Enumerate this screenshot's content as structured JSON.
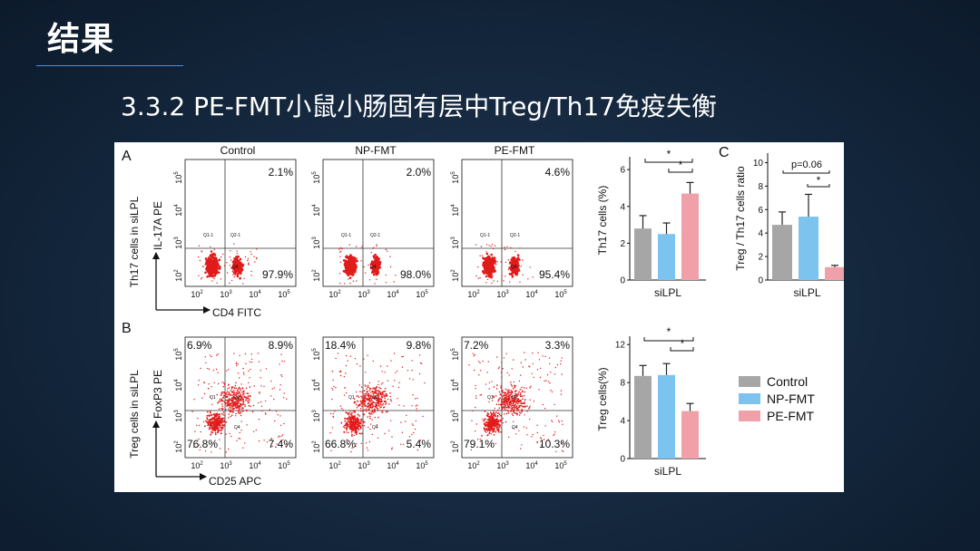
{
  "slide": {
    "title": "结果",
    "subtitle": "3.3.2 PE-FMT小鼠小肠固有层中Treg/Th17免疫失衡"
  },
  "figure": {
    "panel_labels": [
      "A",
      "B",
      "C"
    ],
    "column_titles": [
      "Control",
      "NP-FMT",
      "PE-FMT"
    ],
    "row_a": {
      "y_outer": "Th17 cells in siLPL",
      "y_inner": "IL-17A PE",
      "x_axis": "CD4 FITC",
      "plots": [
        {
          "ur": "2.1%",
          "lr": "97.9%"
        },
        {
          "ur": "2.0%",
          "lr": "98.0%"
        },
        {
          "ur": "4.6%",
          "lr": "95.4%"
        }
      ],
      "gate_labels": {
        "q1": "Q1-1",
        "q2": "Q2-1",
        "q4": "Q4"
      }
    },
    "row_b": {
      "y_outer": "Treg cells in siLPL",
      "y_inner": "FoxP3 PE",
      "x_axis": "CD25 APC",
      "plots": [
        {
          "ul": "6.9%",
          "ur": "8.9%",
          "ll": "76.8%",
          "lr": "7.4%"
        },
        {
          "ul": "18.4%",
          "ur": "9.8%",
          "ll": "66.8%",
          "lr": "5.4%"
        },
        {
          "ul": "7.2%",
          "ur": "3.3%",
          "ll": "79.1%",
          "lr": "10.3%"
        }
      ],
      "gate_labels": {
        "q1": "Q1",
        "q2": "Q2",
        "q4": "Q4"
      }
    },
    "flow_ticks": [
      {
        "base": "10",
        "exp": "2"
      },
      {
        "base": "10",
        "exp": "3"
      },
      {
        "base": "10",
        "exp": "4"
      },
      {
        "base": "10",
        "exp": "5"
      }
    ],
    "significance_star": "*",
    "p_label": "p=0.06"
  },
  "chart_data": [
    {
      "type": "bar",
      "ylabel": "Th17 cells (%)",
      "xlabel": "siLPL",
      "categories": [
        "Control",
        "NP-FMT",
        "PE-FMT"
      ],
      "values": [
        2.8,
        2.5,
        4.7
      ],
      "errors": [
        0.7,
        0.6,
        0.6
      ],
      "ylim": [
        0,
        6.5
      ],
      "yticks": [
        0,
        2,
        4,
        6
      ],
      "colors": [
        "#a6a6a6",
        "#7cc3ef",
        "#f0a0a8"
      ]
    },
    {
      "type": "bar",
      "ylabel": "Treg cells(%)",
      "xlabel": "siLPL",
      "categories": [
        "Control",
        "NP-FMT",
        "PE-FMT"
      ],
      "values": [
        8.7,
        8.8,
        5.0
      ],
      "errors": [
        1.1,
        1.2,
        0.8
      ],
      "ylim": [
        0,
        12.5
      ],
      "yticks": [
        0,
        4,
        8,
        12
      ],
      "colors": [
        "#a6a6a6",
        "#7cc3ef",
        "#f0a0a8"
      ]
    },
    {
      "type": "bar",
      "ylabel": "Treg / Th17 cells ratio",
      "xlabel": "siLPL",
      "categories": [
        "Control",
        "NP-FMT",
        "PE-FMT"
      ],
      "values": [
        4.7,
        5.4,
        1.1
      ],
      "errors": [
        1.1,
        1.9,
        0.15
      ],
      "ylim": [
        0,
        10.5
      ],
      "yticks": [
        0,
        2,
        4,
        6,
        8,
        10
      ],
      "colors": [
        "#a6a6a6",
        "#7cc3ef",
        "#f0a0a8"
      ]
    }
  ],
  "legend": {
    "entries": [
      {
        "label": "Control",
        "color": "#a6a6a6"
      },
      {
        "label": "NP-FMT",
        "color": "#7cc3ef"
      },
      {
        "label": "PE-FMT",
        "color": "#f0a0a8"
      }
    ]
  }
}
